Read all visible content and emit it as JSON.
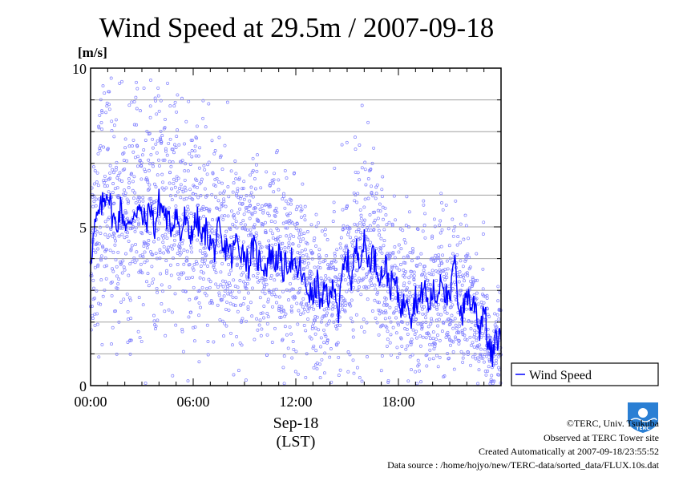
{
  "chart_data": {
    "type": "scatter",
    "title": "Wind Speed at 29.5m / 2007-09-18",
    "ylabel": "[m/s]",
    "ylim": [
      0,
      10
    ],
    "xlim_hours": [
      0,
      24
    ],
    "y_ticks": [
      "0",
      "5",
      "10"
    ],
    "x_ticks": [
      {
        "hour": 0,
        "label": "00:00"
      },
      {
        "hour": 6,
        "label": "06:00"
      },
      {
        "hour": 12,
        "label": "12:00"
      },
      {
        "hour": 18,
        "label": "18:00"
      }
    ],
    "date_label": "Sep-18",
    "timezone_label": "(LST)",
    "grid": true,
    "legend_placement": "right",
    "series": [
      {
        "name": "Wind Speed",
        "kind": "line",
        "color": "#0000ff",
        "x_hours": [
          0.0,
          0.25,
          0.5,
          0.75,
          1.0,
          1.25,
          1.5,
          1.75,
          2.0,
          2.25,
          2.5,
          2.75,
          3.0,
          3.25,
          3.5,
          3.75,
          4.0,
          4.25,
          4.5,
          4.75,
          5.0,
          5.25,
          5.5,
          5.75,
          6.0,
          6.25,
          6.5,
          6.75,
          7.0,
          7.25,
          7.5,
          7.75,
          8.0,
          8.25,
          8.5,
          8.75,
          9.0,
          9.25,
          9.5,
          9.75,
          10.0,
          10.25,
          10.5,
          10.75,
          11.0,
          11.25,
          11.5,
          11.75,
          12.0,
          12.25,
          12.5,
          12.75,
          13.0,
          13.25,
          13.5,
          13.75,
          14.0,
          14.25,
          14.5,
          14.75,
          15.0,
          15.25,
          15.5,
          15.75,
          16.0,
          16.25,
          16.5,
          16.75,
          17.0,
          17.25,
          17.5,
          17.75,
          18.0,
          18.25,
          18.5,
          18.75,
          19.0,
          19.25,
          19.5,
          19.75,
          20.0,
          20.25,
          20.5,
          20.75,
          21.0,
          21.25,
          21.5,
          21.75,
          22.0,
          22.25,
          22.5,
          22.75,
          23.0,
          23.25,
          23.5,
          23.75
        ],
        "values": [
          4.0,
          5.0,
          5.4,
          5.8,
          6.2,
          5.4,
          5.0,
          5.6,
          5.2,
          4.9,
          5.5,
          5.6,
          5.3,
          5.1,
          5.7,
          4.9,
          5.8,
          5.5,
          5.2,
          5.0,
          5.6,
          4.6,
          5.3,
          4.7,
          5.0,
          5.2,
          4.6,
          4.9,
          4.5,
          4.3,
          4.9,
          4.1,
          4.5,
          4.0,
          4.6,
          4.3,
          4.2,
          3.8,
          4.4,
          4.0,
          3.9,
          3.7,
          4.2,
          3.9,
          4.1,
          3.6,
          3.9,
          4.0,
          3.5,
          3.7,
          3.2,
          3.0,
          2.7,
          3.3,
          2.4,
          3.1,
          2.6,
          3.4,
          2.2,
          3.6,
          4.0,
          3.3,
          4.3,
          4.1,
          4.5,
          3.9,
          4.2,
          3.7,
          3.5,
          3.8,
          3.1,
          3.3,
          2.8,
          2.4,
          3.0,
          2.2,
          2.8,
          2.6,
          3.2,
          2.4,
          3.0,
          2.7,
          3.6,
          2.9,
          2.5,
          4.0,
          2.7,
          2.2,
          3.0,
          2.5,
          2.6,
          1.7,
          2.6,
          1.2,
          0.9,
          1.5
        ]
      },
      {
        "name": "",
        "kind": "points",
        "color": "#8080ff",
        "note_free": true
      }
    ]
  },
  "footer": {
    "copyright": "©TERC, Univ. Tsukuba",
    "observed": "Observed at TERC Tower site",
    "created": "Created Automatically at 2007-09-18/23:55:52",
    "source": "Data source : /home/hojyo/new/TERC-data/sorted_data/FLUX.10s.dat"
  },
  "logo": {
    "text": "TERC",
    "color": "#2a7fd4"
  }
}
